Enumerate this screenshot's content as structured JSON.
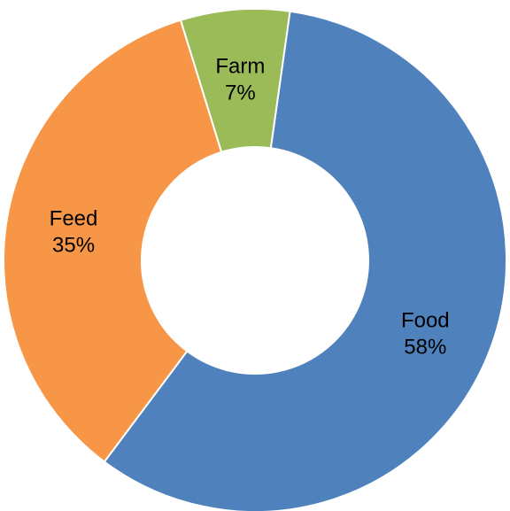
{
  "chart_data": {
    "type": "pie",
    "variant": "donut",
    "title": "",
    "slices": [
      {
        "label": "Food",
        "value": 58,
        "percent_label": "58%",
        "color": "#4F81BD"
      },
      {
        "label": "Feed",
        "value": 35,
        "percent_label": "35%",
        "color": "#F79646"
      },
      {
        "label": "Farm",
        "value": 7,
        "percent_label": "7%",
        "color": "#9BBB59"
      }
    ],
    "start_angle_deg": 8,
    "direction": "clockwise",
    "legend": "none",
    "slice_border_color": "#FFFFFF"
  }
}
